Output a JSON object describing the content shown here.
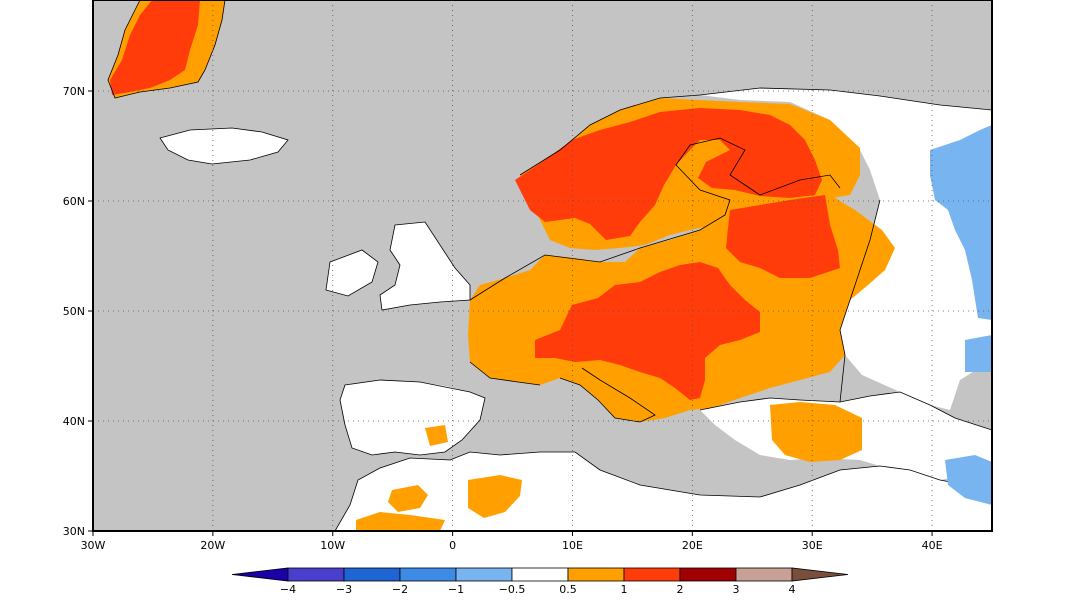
{
  "map": {
    "lon_range": [
      -30,
      45
    ],
    "lat_range": [
      30,
      79
    ],
    "grid": "dotted",
    "ocean_color": "#c4c4c4",
    "lat_ticks": [
      {
        "value": 70,
        "label": "70N"
      },
      {
        "value": 60,
        "label": "60N"
      },
      {
        "value": 50,
        "label": "50N"
      },
      {
        "value": 40,
        "label": "40N"
      },
      {
        "value": 30,
        "label": "30N"
      }
    ],
    "lon_ticks": [
      {
        "value": -30,
        "label": "30W"
      },
      {
        "value": -20,
        "label": "20W"
      },
      {
        "value": -10,
        "label": "10W"
      },
      {
        "value": 0,
        "label": "0"
      },
      {
        "value": 10,
        "label": "10E"
      },
      {
        "value": 20,
        "label": "20E"
      },
      {
        "value": 30,
        "label": "30E"
      },
      {
        "value": 40,
        "label": "40E"
      }
    ]
  },
  "colorbar": {
    "colors": [
      "#1a00a8",
      "#4a3ecc",
      "#1e64d2",
      "#3c8ce6",
      "#78b4f0",
      "#ffffff",
      "#ffa000",
      "#ff3c0a",
      "#a00000",
      "#c8a096",
      "#7a4e3c"
    ],
    "labels": [
      "−4",
      "−3",
      "−2",
      "−1",
      "−0.5",
      "0.5",
      "1",
      "2",
      "3",
      "4"
    ]
  }
}
